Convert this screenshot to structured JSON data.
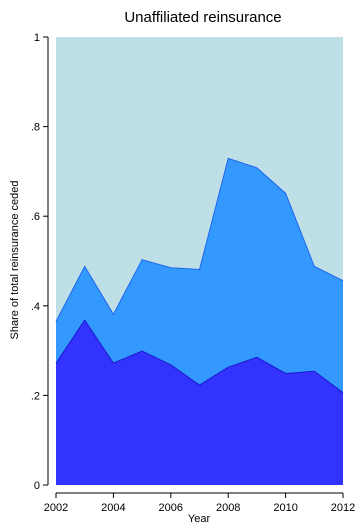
{
  "chart_data": {
    "type": "area",
    "stacked": false,
    "title": "Unaffiliated reinsurance",
    "xlabel": "Year",
    "ylabel": "Share of total reinsurance ceded",
    "x": [
      2002,
      2003,
      2004,
      2005,
      2006,
      2007,
      2008,
      2009,
      2010,
      2011,
      2012
    ],
    "xticks": [
      "2002",
      "2004",
      "2006",
      "2008",
      "2010",
      "2012"
    ],
    "yticks": [
      "0",
      ".2",
      ".4",
      ".6",
      ".8",
      "1"
    ],
    "ylim": [
      0,
      1
    ],
    "grid": false,
    "series": [
      {
        "values": [
          1,
          1,
          1,
          1,
          1,
          1,
          1,
          1,
          1,
          1,
          1
        ],
        "color": "#bfdfe6"
      },
      {
        "values": [
          0.365,
          0.488,
          0.381,
          0.503,
          0.485,
          0.481,
          0.729,
          0.708,
          0.651,
          0.488,
          0.456
        ],
        "color": "#3399ff"
      },
      {
        "values": [
          0.272,
          0.368,
          0.272,
          0.299,
          0.268,
          0.223,
          0.263,
          0.285,
          0.249,
          0.254,
          0.206
        ],
        "color": "#3333ff"
      }
    ]
  }
}
